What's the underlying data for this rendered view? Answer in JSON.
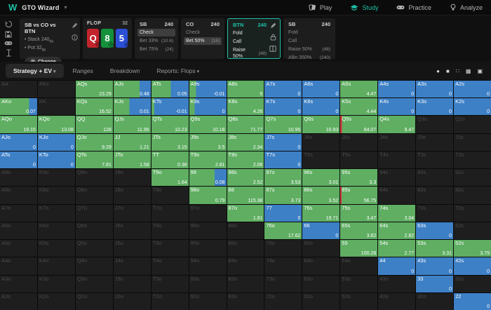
{
  "topbar": {
    "logo": "W",
    "app_title": "GTO Wizard",
    "nav": [
      {
        "label": "Play",
        "icon": "cards-icon",
        "active": false
      },
      {
        "label": "Study",
        "icon": "graduation-cap-icon",
        "active": true
      },
      {
        "label": "Practice",
        "icon": "gamepad-icon",
        "active": false
      },
      {
        "label": "Analyze",
        "icon": "lightbulb-icon",
        "active": false
      }
    ]
  },
  "left_toolbar": {
    "icons": [
      "history-icon",
      "save-icon",
      "gamepad-icon",
      "hand-filter-icon"
    ]
  },
  "spot": {
    "title": "SB vs CO vs BTN",
    "stack": {
      "label": "Stack 240",
      "unit": "bb"
    },
    "pot": {
      "label": "Pot 32",
      "unit": "bb"
    },
    "change_button": "Change",
    "icons": [
      "pencil-icon",
      "info-icon"
    ]
  },
  "flop": {
    "label": "FLOP",
    "pot": "32",
    "cards": [
      {
        "rank": "Q",
        "suit": "♥",
        "color": "#c3242b"
      },
      {
        "rank": "8",
        "suit": "♣",
        "color": "#15903c"
      },
      {
        "rank": "5",
        "suit": "♦",
        "color": "#2b50d6"
      }
    ]
  },
  "panels": [
    {
      "pos": "SB",
      "stack": "240",
      "active": false,
      "actions": [
        {
          "label": "Check",
          "amount": "",
          "selected": true
        },
        {
          "label": "Bet 33%",
          "amount": "(10.6)",
          "selected": false
        },
        {
          "label": "Bet 75%",
          "amount": "(24)",
          "selected": false
        }
      ]
    },
    {
      "pos": "CO",
      "stack": "240",
      "active": false,
      "actions": [
        {
          "label": "Check",
          "amount": "",
          "selected": false
        },
        {
          "label": "Bet 50%",
          "amount": "(16)",
          "selected": true
        }
      ]
    },
    {
      "pos": "BTN",
      "stack": "240",
      "active": true,
      "icons": [
        "pencil-icon",
        "lock-icon",
        "range-book-icon"
      ],
      "actions": [
        {
          "label": "Fold",
          "amount": "",
          "selected": false
        },
        {
          "label": "Call",
          "amount": "",
          "selected": false
        },
        {
          "label": "Raise 50%",
          "amount": "(48)",
          "selected": false
        },
        {
          "label": "Allin 350%",
          "amount": "(240)",
          "selected": false
        }
      ]
    },
    {
      "pos": "SB",
      "stack": "240",
      "active": false,
      "actions": [
        {
          "label": "Fold",
          "amount": "",
          "selected": false
        },
        {
          "label": "Call",
          "amount": "",
          "selected": false
        },
        {
          "label": "Raise 50%",
          "amount": "(48)",
          "selected": false
        },
        {
          "label": "Allin 350%",
          "amount": "(240)",
          "selected": false
        }
      ]
    }
  ],
  "tabs": {
    "items": [
      {
        "label": "Strategy + EV",
        "chevron": true,
        "active": true
      },
      {
        "label": "Ranges",
        "chevron": false,
        "active": false
      },
      {
        "label": "Breakdown",
        "chevron": false,
        "active": false
      },
      {
        "label": "Reports: Flops",
        "chevron": true,
        "active": false
      }
    ],
    "view_icons": [
      "radio-icon",
      "square-icon",
      "dots-grid-icon",
      "grid-icon",
      "filled-square-icon"
    ]
  },
  "grid": {
    "colors": {
      "g": "#5fae62",
      "b": "#3d80c6",
      "d": "#1e1e1e",
      "r": "#cc3a3a"
    },
    "rows": [
      [
        [
          "AA",
          null,
          "d"
        ],
        [
          "AKs",
          null,
          "d"
        ],
        [
          "AQs",
          "23.29",
          "g"
        ],
        [
          "AJs",
          "0.48",
          "g70b30"
        ],
        [
          "ATs",
          "0.05",
          "g52b48"
        ],
        [
          "A9s",
          "-0.01",
          "g18b82"
        ],
        [
          "A8s",
          "5",
          "g"
        ],
        [
          "A7s",
          "0",
          "b"
        ],
        [
          "A6s",
          "0",
          "b"
        ],
        [
          "A5s",
          "4.47",
          "g"
        ],
        [
          "A4s",
          "0",
          "b"
        ],
        [
          "A3s",
          "0",
          "b"
        ],
        [
          "A2s",
          "0",
          "b"
        ]
      ],
      [
        [
          "AKo",
          "0.07",
          "g78b22"
        ],
        [
          "KK",
          null,
          "d"
        ],
        [
          "KQs",
          "16.52",
          "g"
        ],
        [
          "KJs",
          "0.01",
          "g42b58"
        ],
        [
          "KTs",
          "-0.01",
          "g8b92"
        ],
        [
          "K9s",
          "0",
          "g14b86"
        ],
        [
          "K8s",
          "4.26",
          "g"
        ],
        [
          "K7s",
          "0",
          "b"
        ],
        [
          "K6s",
          "0",
          "b"
        ],
        [
          "K5s",
          "4.44",
          "g"
        ],
        [
          "K4s",
          "0",
          "b"
        ],
        [
          "K3s",
          "0",
          "b"
        ],
        [
          "K2s",
          "0",
          "b"
        ]
      ],
      [
        [
          "AQo",
          "19.15",
          "g"
        ],
        [
          "KQo",
          "13.08",
          "g"
        ],
        [
          "QQ",
          "128",
          "g"
        ],
        [
          "QJs",
          "11.95",
          "g"
        ],
        [
          "QTs",
          "10.23",
          "g"
        ],
        [
          "Q9s",
          "10.18",
          "g"
        ],
        [
          "Q8s",
          "71.77",
          "g"
        ],
        [
          "Q7s",
          "10.95",
          "g"
        ],
        [
          "Q6s",
          "10.93",
          "g"
        ],
        [
          "Q5s",
          "64.07",
          "r5g95"
        ],
        [
          "Q4s",
          "9.47",
          "g"
        ],
        [
          "Q3s",
          null,
          "d"
        ],
        [
          "Q2s",
          null,
          "d"
        ]
      ],
      [
        [
          "AJo",
          "0",
          "b"
        ],
        [
          "KJo",
          "0",
          "b"
        ],
        [
          "QJo",
          "9.29",
          "g"
        ],
        [
          "JJ",
          "1.21",
          "g"
        ],
        [
          "JTs",
          "3.15",
          "g"
        ],
        [
          "J9s",
          "3.5",
          "g"
        ],
        [
          "J8s",
          "2.34",
          "g"
        ],
        [
          "J7s",
          "0",
          "b"
        ],
        [
          "J6s",
          null,
          "d"
        ],
        [
          "J5s",
          null,
          "d"
        ],
        [
          "J4s",
          null,
          "d"
        ],
        [
          "J3s",
          null,
          "d"
        ],
        [
          "J2s",
          null,
          "d"
        ]
      ],
      [
        [
          "ATo",
          "0",
          "b"
        ],
        [
          "KTo",
          "0",
          "b"
        ],
        [
          "QTo",
          "7.81",
          "g"
        ],
        [
          "JTo",
          "1.58",
          "g"
        ],
        [
          "TT",
          "0.36",
          "g"
        ],
        [
          "T9s",
          "2.81",
          "g"
        ],
        [
          "T8s",
          "2.06",
          "g"
        ],
        [
          "T7s",
          "0",
          "b"
        ],
        [
          "T6s",
          null,
          "d"
        ],
        [
          "T5s",
          null,
          "d"
        ],
        [
          "T4s",
          null,
          "d"
        ],
        [
          "T3s",
          null,
          "d"
        ],
        [
          "T2s",
          null,
          "d"
        ]
      ],
      [
        [
          "A9o",
          null,
          "d"
        ],
        [
          "K9o",
          null,
          "d"
        ],
        [
          "Q9o",
          null,
          "d"
        ],
        [
          "J9o",
          null,
          "d"
        ],
        [
          "T9o",
          "1.64",
          "g"
        ],
        [
          "99",
          "0.08",
          "g68b32"
        ],
        [
          "98s",
          "2.52",
          "g"
        ],
        [
          "97s",
          "3.53",
          "g"
        ],
        [
          "96s",
          "3.01",
          "g"
        ],
        [
          "95s",
          "3.3",
          "g"
        ],
        [
          "94s",
          null,
          "d"
        ],
        [
          "93s",
          null,
          "d"
        ],
        [
          "92s",
          null,
          "d"
        ]
      ],
      [
        [
          "A8o",
          null,
          "d"
        ],
        [
          "K8o",
          null,
          "d"
        ],
        [
          "Q8o",
          null,
          "d"
        ],
        [
          "J8o",
          null,
          "d"
        ],
        [
          "T8o",
          null,
          "d"
        ],
        [
          "98o",
          "0.79",
          "g"
        ],
        [
          "88",
          "115.38",
          "g"
        ],
        [
          "87s",
          "3.73",
          "g"
        ],
        [
          "86s",
          "3.52",
          "g"
        ],
        [
          "85s",
          "56.75",
          "r4g96"
        ],
        [
          "84s",
          null,
          "d"
        ],
        [
          "83s",
          null,
          "d"
        ],
        [
          "82s",
          null,
          "d"
        ]
      ],
      [
        [
          "A7o",
          null,
          "d"
        ],
        [
          "K7o",
          null,
          "d"
        ],
        [
          "Q7o",
          null,
          "d"
        ],
        [
          "J7o",
          null,
          "d"
        ],
        [
          "T7o",
          null,
          "d"
        ],
        [
          "97o",
          null,
          "d"
        ],
        [
          "87o",
          "1.81",
          "g"
        ],
        [
          "77",
          "0",
          "b"
        ],
        [
          "76s",
          "19.71",
          "g"
        ],
        [
          "75s",
          "3.47",
          "g"
        ],
        [
          "74s",
          "3.04",
          "g"
        ],
        [
          "73s",
          null,
          "d"
        ],
        [
          "72s",
          null,
          "d"
        ]
      ],
      [
        [
          "A6o",
          null,
          "d"
        ],
        [
          "K6o",
          null,
          "d"
        ],
        [
          "Q6o",
          null,
          "d"
        ],
        [
          "J6o",
          null,
          "d"
        ],
        [
          "T6o",
          null,
          "d"
        ],
        [
          "96o",
          null,
          "d"
        ],
        [
          "86o",
          null,
          "d"
        ],
        [
          "76o",
          "17.62",
          "g"
        ],
        [
          "66",
          "0",
          "b"
        ],
        [
          "65s",
          "3.82",
          "g"
        ],
        [
          "64s",
          "2.82",
          "g"
        ],
        [
          "63s",
          "0",
          "b"
        ],
        [
          "62s",
          null,
          "d"
        ]
      ],
      [
        [
          "A5o",
          null,
          "d"
        ],
        [
          "K5o",
          null,
          "d"
        ],
        [
          "Q5o",
          null,
          "d"
        ],
        [
          "J5o",
          null,
          "d"
        ],
        [
          "T5o",
          null,
          "d"
        ],
        [
          "95o",
          null,
          "d"
        ],
        [
          "85o",
          null,
          "d"
        ],
        [
          "75o",
          null,
          "d"
        ],
        [
          "65o",
          null,
          "d"
        ],
        [
          "55",
          "100.28",
          "g"
        ],
        [
          "54s",
          "2.77",
          "g"
        ],
        [
          "53s",
          "3.31",
          "g"
        ],
        [
          "52s",
          "3.79",
          "g"
        ]
      ],
      [
        [
          "A4o",
          null,
          "d"
        ],
        [
          "K4o",
          null,
          "d"
        ],
        [
          "Q4o",
          null,
          "d"
        ],
        [
          "J4o",
          null,
          "d"
        ],
        [
          "T4o",
          null,
          "d"
        ],
        [
          "94o",
          null,
          "d"
        ],
        [
          "84o",
          null,
          "d"
        ],
        [
          "74o",
          null,
          "d"
        ],
        [
          "64o",
          null,
          "d"
        ],
        [
          "54o",
          null,
          "d"
        ],
        [
          "44",
          "0",
          "b"
        ],
        [
          "43s",
          "0",
          "b"
        ],
        [
          "42s",
          "0",
          "b"
        ]
      ],
      [
        [
          "A3o",
          null,
          "d"
        ],
        [
          "K3o",
          null,
          "d"
        ],
        [
          "Q3o",
          null,
          "d"
        ],
        [
          "J3o",
          null,
          "d"
        ],
        [
          "T3o",
          null,
          "d"
        ],
        [
          "93o",
          null,
          "d"
        ],
        [
          "83o",
          null,
          "d"
        ],
        [
          "73o",
          null,
          "d"
        ],
        [
          "63o",
          null,
          "d"
        ],
        [
          "53o",
          null,
          "d"
        ],
        [
          "43o",
          null,
          "d"
        ],
        [
          "33",
          "0",
          "b"
        ],
        [
          "32s",
          null,
          "d"
        ]
      ],
      [
        [
          "A2o",
          null,
          "d"
        ],
        [
          "K2o",
          null,
          "d"
        ],
        [
          "Q2o",
          null,
          "d"
        ],
        [
          "J2o",
          null,
          "d"
        ],
        [
          "T2o",
          null,
          "d"
        ],
        [
          "92o",
          null,
          "d"
        ],
        [
          "82o",
          null,
          "d"
        ],
        [
          "72o",
          null,
          "d"
        ],
        [
          "62o",
          null,
          "d"
        ],
        [
          "52o",
          null,
          "d"
        ],
        [
          "42o",
          null,
          "d"
        ],
        [
          "32o",
          null,
          "d"
        ],
        [
          "22",
          "0",
          "b"
        ]
      ]
    ]
  }
}
